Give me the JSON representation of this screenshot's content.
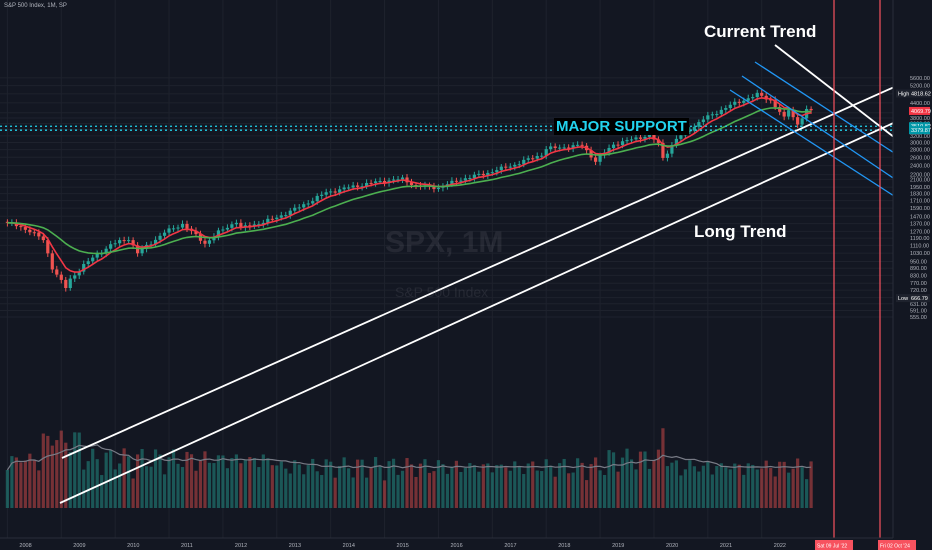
{
  "header": {
    "symbol_line": "S&P 500 Index, 1M, SP"
  },
  "watermark": {
    "ticker": "SPX, 1M",
    "name": "S&P 500 Index"
  },
  "annotations": {
    "current_trend": "Current Trend",
    "long_trend": "Long Trend",
    "major_support": "MAJOR SUPPORT"
  },
  "price_scale": {
    "ticks": [
      "5600.00",
      "5200.00",
      "4800.00",
      "4400.00",
      "4000.00",
      "3800.00",
      "3600.00",
      "3400.00",
      "3200.00",
      "3000.00",
      "2800.00",
      "2600.00",
      "2400.00",
      "2200.00",
      "2100.00",
      "1950.00",
      "1830.00",
      "1710.00",
      "1590.00",
      "1470.00",
      "1370.00",
      "1270.00",
      "1190.00",
      "1110.00",
      "1030.00",
      "950.00",
      "890.00",
      "830.00",
      "770.00",
      "720.00",
      "670.00",
      "631.00",
      "591.00",
      "555.00"
    ],
    "labels": {
      "high_label": "High",
      "high_value": "4818.62",
      "last_value": "4069.79",
      "support1": "3510.82",
      "support2": "3379.87",
      "low_label": "Low",
      "low_value": "666.79"
    }
  },
  "time_scale": {
    "years": [
      "2008",
      "2009",
      "2010",
      "2011",
      "2012",
      "2013",
      "2014",
      "2015",
      "2016",
      "2017",
      "2018",
      "2019",
      "2020",
      "2021",
      "2022"
    ],
    "cursor_label": "Sat 09 Jul '22",
    "future_label": "Fri 02 Oct '24"
  },
  "colors": {
    "up": "#26a69a",
    "down": "#ef5350",
    "ema_fast": "#f23645",
    "ema_slow": "#4caf50",
    "support": "#22d3ee",
    "trendline": "#ffffff",
    "channel": "#2196f3",
    "cursor": "#f7525f"
  },
  "chart_data": {
    "type": "candlestick",
    "title": "S&P 500 Index, 1M, SP",
    "x_range": [
      "2008-01",
      "2024-10"
    ],
    "y_scale": "log",
    "ylim": [
      555,
      5800
    ],
    "monthly_close_path": [
      [
        "2008-01",
        1380
      ],
      [
        "2008-06",
        1280
      ],
      [
        "2008-09",
        1166
      ],
      [
        "2008-11",
        896
      ],
      [
        "2009-02",
        735
      ],
      [
        "2009-03",
        797
      ],
      [
        "2009-06",
        919
      ],
      [
        "2009-12",
        1115
      ],
      [
        "2010-04",
        1187
      ],
      [
        "2010-06",
        1030
      ],
      [
        "2010-12",
        1258
      ],
      [
        "2011-04",
        1364
      ],
      [
        "2011-09",
        1131
      ],
      [
        "2011-12",
        1258
      ],
      [
        "2012-04",
        1398
      ],
      [
        "2012-05",
        1310
      ],
      [
        "2012-12",
        1426
      ],
      [
        "2013-06",
        1606
      ],
      [
        "2013-12",
        1848
      ],
      [
        "2014-06",
        1960
      ],
      [
        "2014-12",
        2059
      ],
      [
        "2015-05",
        2107
      ],
      [
        "2015-08",
        1972
      ],
      [
        "2016-01",
        1940
      ],
      [
        "2016-06",
        2099
      ],
      [
        "2016-12",
        2239
      ],
      [
        "2017-06",
        2423
      ],
      [
        "2017-12",
        2674
      ],
      [
        "2018-01",
        2824
      ],
      [
        "2018-09",
        2914
      ],
      [
        "2018-12",
        2507
      ],
      [
        "2019-04",
        2946
      ],
      [
        "2019-12",
        3231
      ],
      [
        "2020-02",
        2954
      ],
      [
        "2020-03",
        2585
      ],
      [
        "2020-06",
        3100
      ],
      [
        "2020-12",
        3756
      ],
      [
        "2021-06",
        4297
      ],
      [
        "2021-12",
        4766
      ],
      [
        "2022-03",
        4530
      ],
      [
        "2022-06",
        3785
      ],
      [
        "2022-07",
        4130
      ],
      [
        "2022-09",
        3586
      ],
      [
        "2022-11",
        4080
      ],
      [
        "2022-12",
        4069.79
      ]
    ],
    "high": 4818.62,
    "low": 666.79,
    "last": 4069.79,
    "support_levels": [
      3510.82,
      3379.87
    ],
    "overlays": [
      "EMA fast (red)",
      "EMA slow (green)",
      "Volume"
    ]
  }
}
